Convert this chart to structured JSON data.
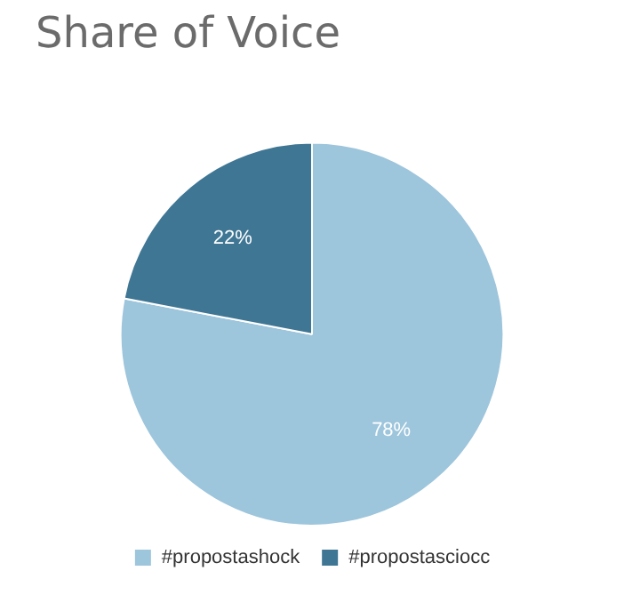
{
  "chart_data": {
    "type": "pie",
    "title": "Share of Voice",
    "categories": [
      "#propostashock",
      "#propostasciocc"
    ],
    "values": [
      78,
      22
    ],
    "colors": [
      "#9dc5dc",
      "#3f7694"
    ],
    "value_labels": [
      "78%",
      "22%"
    ],
    "legend": "bottom"
  }
}
